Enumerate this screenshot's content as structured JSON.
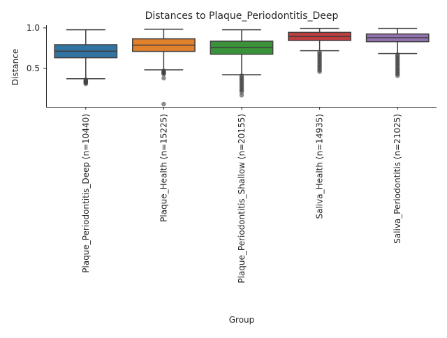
{
  "chart_data": {
    "type": "box",
    "title": "Distances to Plaque_Periodontitis_Deep",
    "xlabel": "Group",
    "ylabel": "Distance",
    "ylim": [
      0.026,
      1.034
    ],
    "yticks": [
      0.5,
      1.0
    ],
    "ytick_labels": [
      "0.5",
      "1.0"
    ],
    "grid": false,
    "categories": [
      "Plaque_Periodontitis_Deep (n=10440)",
      "Plaque_Health (n=15225)",
      "Plaque_Periodontitis_Shallow (n=20155)",
      "Saliva_Health (n=14935)",
      "Saliva_Periodontitis (n=21025)"
    ],
    "colors": [
      "#3274a1",
      "#e1812c",
      "#3a923a",
      "#c03d3e",
      "#9372b2"
    ],
    "boxes": [
      {
        "whislo": 0.373,
        "q1": 0.632,
        "med": 0.713,
        "q3": 0.793,
        "whishi": 0.977,
        "fliers": [
          0.36,
          0.35,
          0.34,
          0.33,
          0.32,
          0.31
        ]
      },
      {
        "whislo": 0.483,
        "q1": 0.71,
        "med": 0.787,
        "q3": 0.865,
        "whishi": 0.983,
        "fliers": [
          0.47,
          0.46,
          0.45,
          0.44,
          0.43,
          0.38,
          0.06
        ]
      },
      {
        "whislo": 0.422,
        "q1": 0.675,
        "med": 0.756,
        "q3": 0.836,
        "whishi": 0.977,
        "fliers": [
          0.41,
          0.39,
          0.37,
          0.35,
          0.33,
          0.31,
          0.29,
          0.27,
          0.25,
          0.23,
          0.21,
          0.17
        ]
      },
      {
        "whislo": 0.718,
        "q1": 0.845,
        "med": 0.894,
        "q3": 0.945,
        "whishi": 0.994,
        "fliers": [
          0.7,
          0.68,
          0.66,
          0.64,
          0.62,
          0.6,
          0.58,
          0.56,
          0.54,
          0.52,
          0.5,
          0.48,
          0.46
        ]
      },
      {
        "whislo": 0.684,
        "q1": 0.83,
        "med": 0.879,
        "q3": 0.925,
        "whishi": 0.994,
        "fliers": [
          0.67,
          0.65,
          0.63,
          0.61,
          0.59,
          0.57,
          0.55,
          0.53,
          0.51,
          0.49,
          0.47,
          0.45,
          0.43,
          0.41
        ]
      }
    ]
  }
}
